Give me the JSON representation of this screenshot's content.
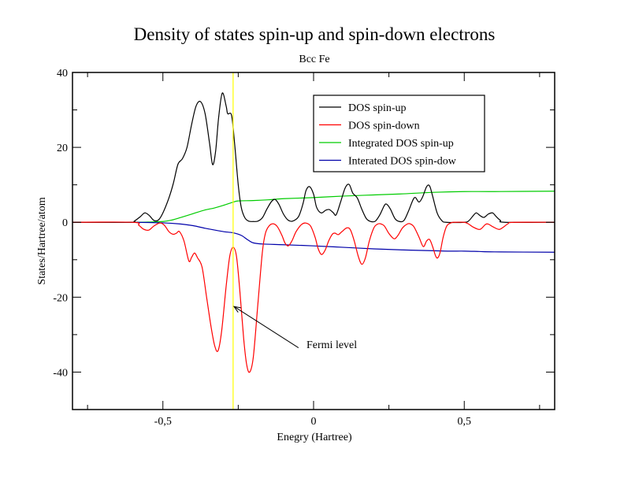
{
  "chart_data": {
    "type": "line",
    "title": "Density of states spin-up and spin-down electrons",
    "subtitle": "Bcc Fe",
    "xlabel": "Enegry (Hartree)",
    "ylabel": "States/Hartree/atom",
    "xlim": [
      -0.8,
      0.8
    ],
    "ylim": [
      -50,
      40
    ],
    "x_ticks": [
      -0.5,
      0,
      0.5
    ],
    "x_tick_labels": [
      "-0,5",
      "0",
      "0,5"
    ],
    "x_minor_ticks": [
      -0.75,
      -0.25,
      0.25,
      0.75
    ],
    "y_ticks": [
      -40,
      -20,
      0,
      20,
      40
    ],
    "y_tick_labels": [
      "-40",
      "-20",
      "0",
      "20",
      "40"
    ],
    "y_minor_ticks": [
      -30,
      -10,
      10,
      30
    ],
    "grid": false,
    "legend_position": "top-right",
    "fermi_level": {
      "x": -0.267,
      "color": "#ffff00",
      "annotation": "Fermi level",
      "arrow_tip": [
        -0.264,
        -22.5
      ],
      "arrow_tail": [
        -0.05,
        -33.5
      ]
    },
    "series": [
      {
        "name": "DOS spin-up",
        "color": "#000000",
        "points": [
          [
            -0.8,
            0
          ],
          [
            -0.61,
            0
          ],
          [
            -0.595,
            0.3
          ],
          [
            -0.575,
            1.5
          ],
          [
            -0.56,
            2.5
          ],
          [
            -0.545,
            1.8
          ],
          [
            -0.53,
            0.5
          ],
          [
            -0.515,
            0.6
          ],
          [
            -0.5,
            2.5
          ],
          [
            -0.48,
            6.5
          ],
          [
            -0.465,
            10.5
          ],
          [
            -0.45,
            15.5
          ],
          [
            -0.435,
            17
          ],
          [
            -0.42,
            20
          ],
          [
            -0.405,
            26
          ],
          [
            -0.39,
            31
          ],
          [
            -0.375,
            32.2
          ],
          [
            -0.36,
            29
          ],
          [
            -0.345,
            21
          ],
          [
            -0.335,
            15.4
          ],
          [
            -0.325,
            19
          ],
          [
            -0.315,
            28
          ],
          [
            -0.303,
            34.5
          ],
          [
            -0.29,
            31
          ],
          [
            -0.285,
            29
          ],
          [
            -0.272,
            28.5
          ],
          [
            -0.262,
            21
          ],
          [
            -0.25,
            10
          ],
          [
            -0.24,
            4
          ],
          [
            -0.228,
            1.2
          ],
          [
            -0.215,
            0.3
          ],
          [
            -0.2,
            0.2
          ],
          [
            -0.185,
            0.3
          ],
          [
            -0.17,
            1.2
          ],
          [
            -0.155,
            3.5
          ],
          [
            -0.14,
            5.5
          ],
          [
            -0.128,
            6.1
          ],
          [
            -0.115,
            4.8
          ],
          [
            -0.1,
            2.2
          ],
          [
            -0.085,
            0.6
          ],
          [
            -0.07,
            0.3
          ],
          [
            -0.05,
            1.5
          ],
          [
            -0.035,
            5
          ],
          [
            -0.025,
            8.5
          ],
          [
            -0.013,
            9.5
          ],
          [
            0,
            7.5
          ],
          [
            0.01,
            4
          ],
          [
            0.025,
            2.5
          ],
          [
            0.04,
            3.2
          ],
          [
            0.052,
            3.4
          ],
          [
            0.065,
            2.6
          ],
          [
            0.075,
            2
          ],
          [
            0.09,
            5.5
          ],
          [
            0.105,
            9.2
          ],
          [
            0.118,
            10.1
          ],
          [
            0.13,
            7.8
          ],
          [
            0.145,
            6.5
          ],
          [
            0.16,
            3.5
          ],
          [
            0.175,
            1
          ],
          [
            0.19,
            0.2
          ],
          [
            0.205,
            0.3
          ],
          [
            0.22,
            2
          ],
          [
            0.235,
            4.5
          ],
          [
            0.243,
            4.8
          ],
          [
            0.255,
            3.5
          ],
          [
            0.27,
            1
          ],
          [
            0.285,
            0.2
          ],
          [
            0.3,
            0.5
          ],
          [
            0.315,
            3
          ],
          [
            0.33,
            6
          ],
          [
            0.338,
            6.6
          ],
          [
            0.35,
            5.4
          ],
          [
            0.362,
            6.8
          ],
          [
            0.375,
            9.5
          ],
          [
            0.385,
            9.7
          ],
          [
            0.395,
            7
          ],
          [
            0.41,
            2.5
          ],
          [
            0.425,
            0.5
          ],
          [
            0.44,
            0
          ],
          [
            0.5,
            0
          ],
          [
            0.515,
            0.4
          ],
          [
            0.53,
            1.8
          ],
          [
            0.54,
            2.5
          ],
          [
            0.552,
            1.8
          ],
          [
            0.565,
            1.3
          ],
          [
            0.58,
            2.2
          ],
          [
            0.594,
            2.5
          ],
          [
            0.605,
            1.6
          ],
          [
            0.62,
            0.5
          ],
          [
            0.635,
            0
          ],
          [
            0.8,
            0
          ]
        ]
      },
      {
        "name": "DOS spin-down",
        "color": "#ff0000",
        "points": [
          [
            -0.8,
            0
          ],
          [
            -0.6,
            0
          ],
          [
            -0.58,
            -0.8
          ],
          [
            -0.565,
            -1.8
          ],
          [
            -0.547,
            -2.1
          ],
          [
            -0.53,
            -1
          ],
          [
            -0.51,
            -0.2
          ],
          [
            -0.495,
            -0.8
          ],
          [
            -0.48,
            -2.5
          ],
          [
            -0.466,
            -3.2
          ],
          [
            -0.455,
            -2.9
          ],
          [
            -0.445,
            -2.5
          ],
          [
            -0.43,
            -5
          ],
          [
            -0.414,
            -10.3
          ],
          [
            -0.405,
            -9.4
          ],
          [
            -0.395,
            -8.2
          ],
          [
            -0.385,
            -9.5
          ],
          [
            -0.37,
            -12
          ],
          [
            -0.355,
            -20
          ],
          [
            -0.34,
            -28
          ],
          [
            -0.328,
            -33
          ],
          [
            -0.317,
            -34.3
          ],
          [
            -0.305,
            -29
          ],
          [
            -0.29,
            -17
          ],
          [
            -0.278,
            -9
          ],
          [
            -0.267,
            -6.7
          ],
          [
            -0.256,
            -9
          ],
          [
            -0.245,
            -18
          ],
          [
            -0.232,
            -31
          ],
          [
            -0.222,
            -38
          ],
          [
            -0.212,
            -40
          ],
          [
            -0.2,
            -36
          ],
          [
            -0.185,
            -22
          ],
          [
            -0.17,
            -8
          ],
          [
            -0.16,
            -3
          ],
          [
            -0.148,
            -1
          ],
          [
            -0.134,
            -0.4
          ],
          [
            -0.12,
            -1.2
          ],
          [
            -0.105,
            -3.5
          ],
          [
            -0.095,
            -5.5
          ],
          [
            -0.084,
            -6.3
          ],
          [
            -0.072,
            -5
          ],
          [
            -0.058,
            -2.5
          ],
          [
            -0.04,
            -0.6
          ],
          [
            -0.026,
            -0.2
          ],
          [
            -0.01,
            -1
          ],
          [
            0.005,
            -4
          ],
          [
            0.015,
            -7
          ],
          [
            0.026,
            -8.6
          ],
          [
            0.038,
            -7.5
          ],
          [
            0.05,
            -5
          ],
          [
            0.062,
            -3.2
          ],
          [
            0.071,
            -2.9
          ],
          [
            0.082,
            -3.3
          ],
          [
            0.094,
            -2.5
          ],
          [
            0.11,
            -1.5
          ],
          [
            0.122,
            -2
          ],
          [
            0.135,
            -5
          ],
          [
            0.148,
            -9
          ],
          [
            0.16,
            -11.2
          ],
          [
            0.172,
            -9.5
          ],
          [
            0.185,
            -5
          ],
          [
            0.2,
            -1.5
          ],
          [
            0.212,
            -0.5
          ],
          [
            0.222,
            -0.4
          ],
          [
            0.235,
            -1
          ],
          [
            0.25,
            -3
          ],
          [
            0.267,
            -4.4
          ],
          [
            0.28,
            -3.5
          ],
          [
            0.295,
            -1.5
          ],
          [
            0.31,
            -0.5
          ],
          [
            0.32,
            -0.4
          ],
          [
            0.333,
            -1.2
          ],
          [
            0.35,
            -4
          ],
          [
            0.364,
            -6.5
          ],
          [
            0.375,
            -5
          ],
          [
            0.385,
            -4.6
          ],
          [
            0.395,
            -6.5
          ],
          [
            0.405,
            -9
          ],
          [
            0.412,
            -9.5
          ],
          [
            0.42,
            -8
          ],
          [
            0.43,
            -4
          ],
          [
            0.442,
            -1
          ],
          [
            0.458,
            -0.1
          ],
          [
            0.47,
            0
          ],
          [
            0.5,
            0
          ],
          [
            0.515,
            -0.5
          ],
          [
            0.53,
            -1.3
          ],
          [
            0.552,
            -1.9
          ],
          [
            0.57,
            -0.6
          ],
          [
            0.58,
            -0.5
          ],
          [
            0.595,
            -1.2
          ],
          [
            0.615,
            -1.9
          ],
          [
            0.63,
            -1.3
          ],
          [
            0.645,
            -0.4
          ],
          [
            0.665,
            0
          ],
          [
            0.8,
            0
          ]
        ]
      },
      {
        "name": "Integrated DOS spin-up",
        "color": "#00cc00",
        "points": [
          [
            -0.8,
            0
          ],
          [
            -0.6,
            0
          ],
          [
            -0.55,
            0.05
          ],
          [
            -0.5,
            0.2
          ],
          [
            -0.47,
            0.6
          ],
          [
            -0.44,
            1.3
          ],
          [
            -0.4,
            2.3
          ],
          [
            -0.36,
            3.3
          ],
          [
            -0.33,
            3.8
          ],
          [
            -0.3,
            4.5
          ],
          [
            -0.27,
            5.3
          ],
          [
            -0.25,
            5.7
          ],
          [
            -0.2,
            5.8
          ],
          [
            -0.15,
            6.0
          ],
          [
            -0.1,
            6.3
          ],
          [
            0,
            6.6
          ],
          [
            0.1,
            7.0
          ],
          [
            0.2,
            7.3
          ],
          [
            0.3,
            7.6
          ],
          [
            0.4,
            8.0
          ],
          [
            0.5,
            8.2
          ],
          [
            0.6,
            8.2
          ],
          [
            0.8,
            8.3
          ]
        ]
      },
      {
        "name": "Interated DOS spin-dow",
        "color": "#0000aa",
        "points": [
          [
            -0.8,
            0
          ],
          [
            -0.6,
            0
          ],
          [
            -0.5,
            -0.15
          ],
          [
            -0.45,
            -0.4
          ],
          [
            -0.4,
            -0.9
          ],
          [
            -0.36,
            -1.6
          ],
          [
            -0.32,
            -2.2
          ],
          [
            -0.29,
            -2.6
          ],
          [
            -0.267,
            -2.8
          ],
          [
            -0.24,
            -3.5
          ],
          [
            -0.22,
            -4.6
          ],
          [
            -0.2,
            -5.5
          ],
          [
            -0.17,
            -5.8
          ],
          [
            -0.1,
            -6.0
          ],
          [
            0,
            -6.3
          ],
          [
            0.1,
            -6.7
          ],
          [
            0.2,
            -7.1
          ],
          [
            0.3,
            -7.4
          ],
          [
            0.4,
            -7.6
          ],
          [
            0.45,
            -7.7
          ],
          [
            0.5,
            -7.7
          ],
          [
            0.55,
            -7.8
          ],
          [
            0.6,
            -7.9
          ],
          [
            0.8,
            -8.0
          ]
        ]
      }
    ]
  }
}
